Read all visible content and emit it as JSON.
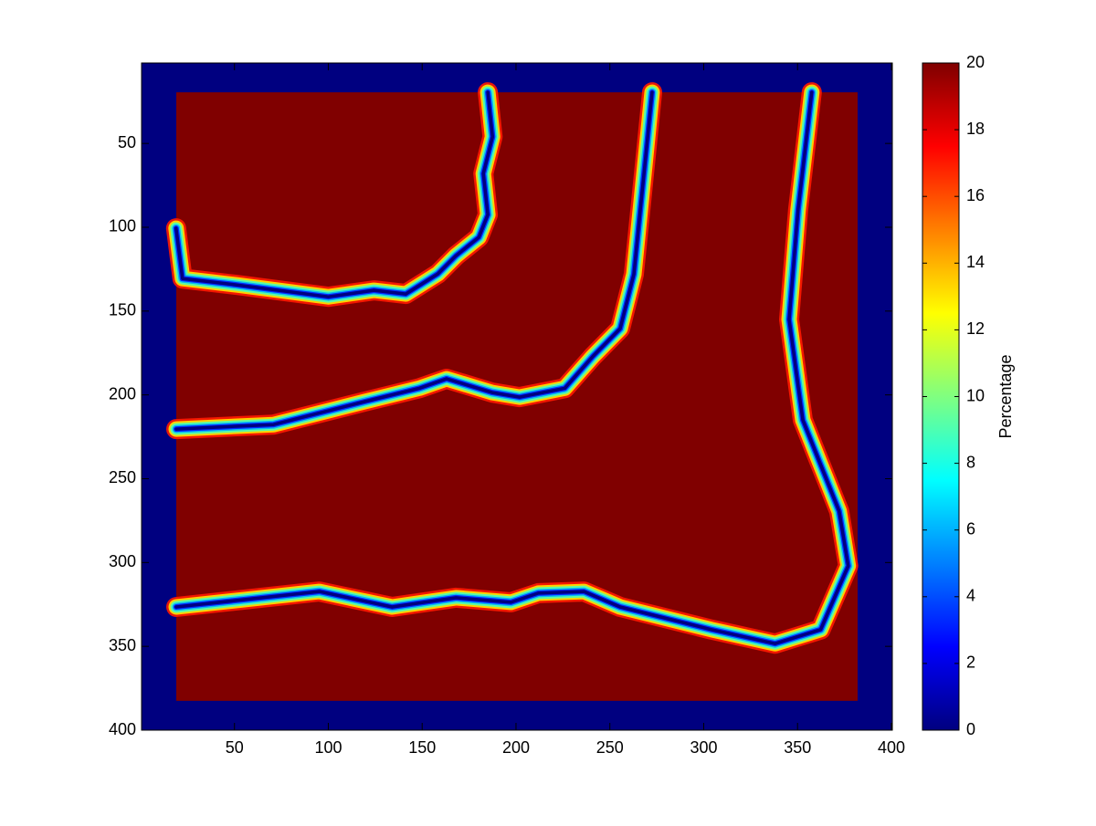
{
  "chart_data": {
    "type": "heatmap",
    "xlim": [
      0.5,
      400.5
    ],
    "ylim": [
      2,
      400
    ],
    "y_reversed": true,
    "xticks": [
      50,
      100,
      150,
      200,
      250,
      300,
      350,
      400
    ],
    "yticks": [
      50,
      100,
      150,
      200,
      250,
      300,
      350,
      400
    ],
    "colormap": "jet",
    "clim": [
      0,
      20
    ],
    "colorbar": {
      "label": "Percentage",
      "ticks": [
        0,
        2,
        4,
        6,
        8,
        10,
        12,
        14,
        16,
        18,
        20
      ]
    },
    "border_value": 0,
    "interior": {
      "x": [
        19,
        382
      ],
      "y": [
        19.5,
        382.5
      ],
      "value": 20
    },
    "curves": [
      {
        "value": 0,
        "x": [
          18.9,
          22.3,
          51.4,
          100,
          124.3,
          141.3,
          158.3,
          168,
          180.2,
          185,
          182.6,
          187.5,
          185
        ],
        "y": [
          100.6,
          130.6,
          134.4,
          141.5,
          137.6,
          139.8,
          127.8,
          117,
          106,
          92.5,
          68,
          46,
          19.5
        ]
      },
      {
        "value": 0,
        "x": [
          19,
          70.8,
          119.4,
          148.6,
          163,
          187.3,
          201.9,
          226,
          241,
          255.5,
          262.8,
          267.7,
          272.5
        ],
        "y": [
          220.4,
          217.7,
          204,
          196,
          190.4,
          198.6,
          201.3,
          196,
          177,
          160.5,
          128,
          73.4,
          19.5
        ]
      },
      {
        "value": 0,
        "x": [
          19,
          95.2,
          134,
          168,
          197.3,
          211.9,
          236.2,
          255.5,
          304.1,
          338,
          362.3,
          377,
          372.2,
          352.8,
          345.5,
          350.3,
          357.6
        ],
        "y": [
          326.5,
          317.3,
          326.5,
          321,
          323.7,
          318.3,
          317.3,
          326.5,
          340,
          348.4,
          340,
          302,
          269.4,
          215,
          155,
          89.7,
          19.5
        ]
      }
    ]
  }
}
